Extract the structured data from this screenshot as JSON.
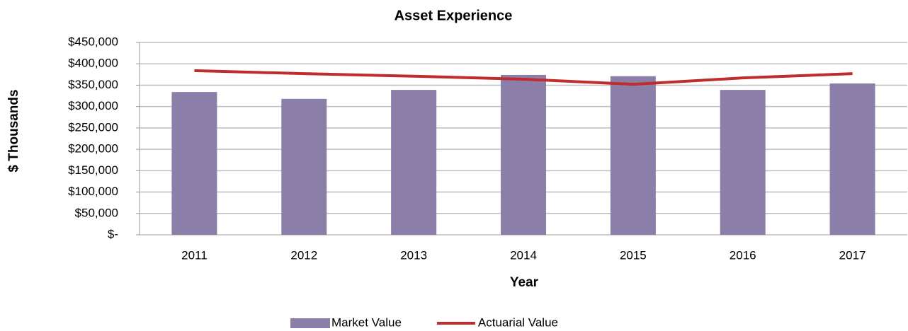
{
  "chart_data": {
    "type": "bar_line",
    "title": "Asset Experience",
    "x_label": "Year",
    "y_label": "$ Thousands",
    "categories": [
      "2011",
      "2012",
      "2013",
      "2014",
      "2015",
      "2016",
      "2017"
    ],
    "series": [
      {
        "name": "Market Value",
        "type": "bar",
        "color": "#8b7faa",
        "values": [
          334000,
          318000,
          339000,
          374000,
          371000,
          339000,
          354000
        ]
      },
      {
        "name": "Actuarial Value",
        "type": "line",
        "color": "#be2c2c",
        "values": [
          384000,
          377000,
          371000,
          364000,
          352000,
          367000,
          377000
        ]
      }
    ],
    "ylim": [
      0,
      450000
    ],
    "yticks": [
      {
        "value": 0,
        "label": "$-"
      },
      {
        "value": 50000,
        "label": "$50,000"
      },
      {
        "value": 100000,
        "label": "$100,000"
      },
      {
        "value": 150000,
        "label": "$150,000"
      },
      {
        "value": 200000,
        "label": "$200,000"
      },
      {
        "value": 250000,
        "label": "$250,000"
      },
      {
        "value": 300000,
        "label": "$300,000"
      },
      {
        "value": 350000,
        "label": "$350,000"
      },
      {
        "value": 400000,
        "label": "$400,000"
      },
      {
        "value": 450000,
        "label": "$450,000"
      }
    ],
    "grid": true,
    "legend": "bottom"
  }
}
